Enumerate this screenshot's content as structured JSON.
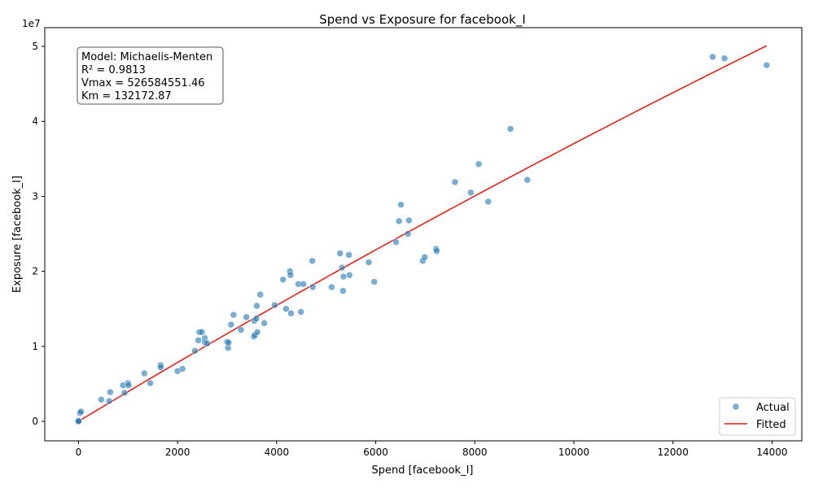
{
  "chart_data": {
    "type": "scatter",
    "title": "Spend vs Exposure for facebook_I",
    "xlabel": "Spend [facebook_I]",
    "ylabel": "Exposure [facebook_I]",
    "y_offset_label": "1e7",
    "xlim": [
      -680,
      14600
    ],
    "ylim": [
      -2.6,
      52.5
    ],
    "x_ticks": [
      0,
      2000,
      4000,
      6000,
      8000,
      10000,
      12000,
      14000
    ],
    "x_tick_labels": [
      "0",
      "2000",
      "4000",
      "6000",
      "8000",
      "10000",
      "12000",
      "14000"
    ],
    "y_ticks": [
      0,
      10,
      20,
      30,
      40,
      50
    ],
    "y_tick_labels": [
      "0",
      "1",
      "2",
      "3",
      "4",
      "5"
    ],
    "grid": false,
    "legend_position": "bottom-right",
    "annotation_lines": [
      "Model: Michaelis-Menten",
      "R² = 0.9813",
      "Vmax = 526584551.46",
      "Km = 132172.87"
    ],
    "series": [
      {
        "name": "Actual",
        "kind": "scatter",
        "color": "#1f77b4",
        "y_unit_note": "y in units of 1e6",
        "points": [
          [
            0,
            0
          ],
          [
            0,
            0.1
          ],
          [
            0,
            0
          ],
          [
            30,
            1.1
          ],
          [
            50,
            1.3
          ],
          [
            460,
            2.9
          ],
          [
            620,
            2.7
          ],
          [
            640,
            3.9
          ],
          [
            900,
            4.8
          ],
          [
            930,
            3.8
          ],
          [
            1000,
            5.1
          ],
          [
            1010,
            4.8
          ],
          [
            1330,
            6.4
          ],
          [
            1450,
            5.1
          ],
          [
            1660,
            7.5
          ],
          [
            1660,
            7.2
          ],
          [
            2000,
            6.7
          ],
          [
            2100,
            7.0
          ],
          [
            2350,
            9.4
          ],
          [
            2420,
            10.8
          ],
          [
            2440,
            11.9
          ],
          [
            2490,
            11.9
          ],
          [
            2550,
            11.1
          ],
          [
            2550,
            10.5
          ],
          [
            2600,
            10.4
          ],
          [
            3000,
            10.6
          ],
          [
            3020,
            9.8
          ],
          [
            3030,
            10.5
          ],
          [
            3080,
            12.9
          ],
          [
            3130,
            14.2
          ],
          [
            3280,
            12.2
          ],
          [
            3390,
            13.9
          ],
          [
            3540,
            11.3
          ],
          [
            3550,
            13.4
          ],
          [
            3560,
            11.5
          ],
          [
            3590,
            13.7
          ],
          [
            3600,
            15.4
          ],
          [
            3610,
            11.9
          ],
          [
            3670,
            16.9
          ],
          [
            3750,
            13.1
          ],
          [
            3960,
            15.5
          ],
          [
            4130,
            18.9
          ],
          [
            4190,
            15.0
          ],
          [
            4270,
            20.0
          ],
          [
            4280,
            19.5
          ],
          [
            4290,
            14.4
          ],
          [
            4440,
            18.3
          ],
          [
            4490,
            14.6
          ],
          [
            4540,
            18.3
          ],
          [
            4720,
            21.4
          ],
          [
            4730,
            17.9
          ],
          [
            5110,
            17.9
          ],
          [
            5280,
            22.4
          ],
          [
            5320,
            20.5
          ],
          [
            5340,
            17.4
          ],
          [
            5350,
            19.3
          ],
          [
            5460,
            22.2
          ],
          [
            5470,
            19.5
          ],
          [
            5860,
            21.2
          ],
          [
            5970,
            18.6
          ],
          [
            6410,
            23.9
          ],
          [
            6470,
            26.7
          ],
          [
            6510,
            28.9
          ],
          [
            6650,
            25.0
          ],
          [
            6670,
            26.8
          ],
          [
            6950,
            21.4
          ],
          [
            6990,
            21.9
          ],
          [
            7220,
            23.0
          ],
          [
            7230,
            22.7
          ],
          [
            7600,
            31.9
          ],
          [
            7920,
            30.5
          ],
          [
            8080,
            34.3
          ],
          [
            8270,
            29.3
          ],
          [
            8720,
            39.0
          ],
          [
            9060,
            32.2
          ],
          [
            12800,
            48.6
          ],
          [
            13040,
            48.4
          ],
          [
            13890,
            47.5
          ]
        ]
      },
      {
        "name": "Fitted",
        "kind": "line",
        "color": "#e8160c",
        "vmax": 526584551.46,
        "km": 132172.87,
        "x_range": [
          0,
          13890
        ]
      }
    ]
  }
}
